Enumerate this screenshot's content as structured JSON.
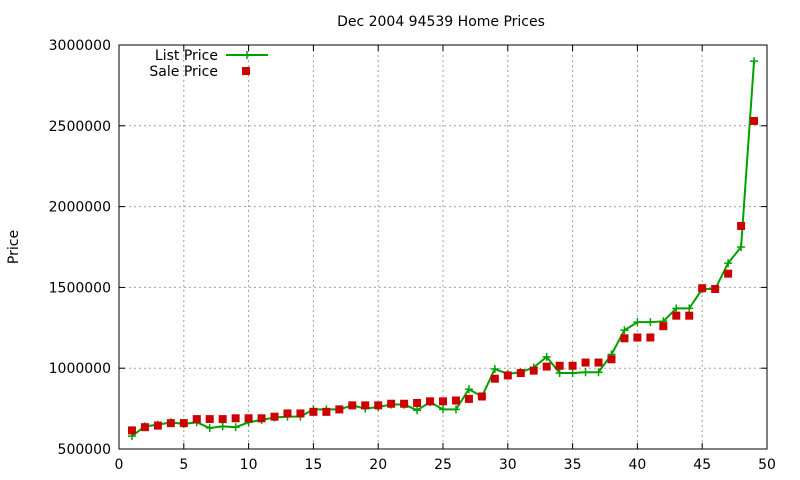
{
  "chart_data": {
    "type": "line",
    "title": "Dec 2004 94539 Home Prices",
    "xlabel": "",
    "ylabel": "Price",
    "xlim": [
      0,
      50
    ],
    "ylim": [
      500000,
      3000000
    ],
    "x_ticks": [
      0,
      5,
      10,
      15,
      20,
      25,
      30,
      35,
      40,
      45,
      50
    ],
    "y_ticks": [
      500000,
      1000000,
      1500000,
      2000000,
      2500000,
      3000000
    ],
    "x_tick_labels": [
      "0",
      "5",
      "10",
      "15",
      "20",
      "25",
      "30",
      "35",
      "40",
      "45",
      "50"
    ],
    "y_tick_labels": [
      "500000",
      "1000000",
      "1500000",
      "2000000",
      "2500000",
      "3000000"
    ],
    "grid": true,
    "legend_position": "top-left",
    "series": [
      {
        "name": "List Price",
        "style": "line+cross",
        "color": "#00a000",
        "x": [
          1,
          2,
          3,
          4,
          5,
          6,
          7,
          8,
          9,
          10,
          11,
          12,
          13,
          14,
          15,
          16,
          17,
          18,
          19,
          20,
          21,
          22,
          23,
          24,
          25,
          26,
          27,
          28,
          29,
          30,
          31,
          32,
          33,
          34,
          35,
          36,
          37,
          38,
          39,
          40,
          41,
          42,
          43,
          44,
          45,
          46,
          47,
          48,
          49
        ],
        "y": [
          580000,
          640000,
          650000,
          665000,
          655000,
          665000,
          630000,
          640000,
          635000,
          665000,
          680000,
          695000,
          700000,
          700000,
          745000,
          745000,
          745000,
          770000,
          750000,
          760000,
          775000,
          775000,
          740000,
          790000,
          745000,
          745000,
          870000,
          825000,
          995000,
          965000,
          975000,
          1005000,
          1070000,
          970000,
          970000,
          975000,
          975000,
          1085000,
          1235000,
          1285000,
          1285000,
          1290000,
          1370000,
          1370000,
          1490000,
          1490000,
          1650000,
          1750000,
          2900000
        ]
      },
      {
        "name": "Sale Price",
        "style": "square",
        "color": "#cc0000",
        "x": [
          1,
          2,
          3,
          4,
          5,
          6,
          7,
          8,
          9,
          10,
          11,
          12,
          13,
          14,
          15,
          16,
          17,
          18,
          19,
          20,
          21,
          22,
          23,
          24,
          25,
          26,
          27,
          28,
          29,
          30,
          31,
          32,
          33,
          34,
          35,
          36,
          37,
          38,
          39,
          40,
          41,
          42,
          43,
          44,
          45,
          46,
          47,
          48,
          49
        ],
        "y": [
          615000,
          635000,
          645000,
          660000,
          660000,
          685000,
          685000,
          685000,
          690000,
          690000,
          690000,
          700000,
          720000,
          720000,
          730000,
          730000,
          745000,
          770000,
          770000,
          770000,
          780000,
          780000,
          785000,
          795000,
          795000,
          800000,
          810000,
          825000,
          935000,
          955000,
          970000,
          985000,
          1010000,
          1015000,
          1015000,
          1035000,
          1035000,
          1055000,
          1185000,
          1190000,
          1190000,
          1260000,
          1325000,
          1325000,
          1495000,
          1490000,
          1585000,
          1880000,
          2530000
        ]
      }
    ]
  }
}
